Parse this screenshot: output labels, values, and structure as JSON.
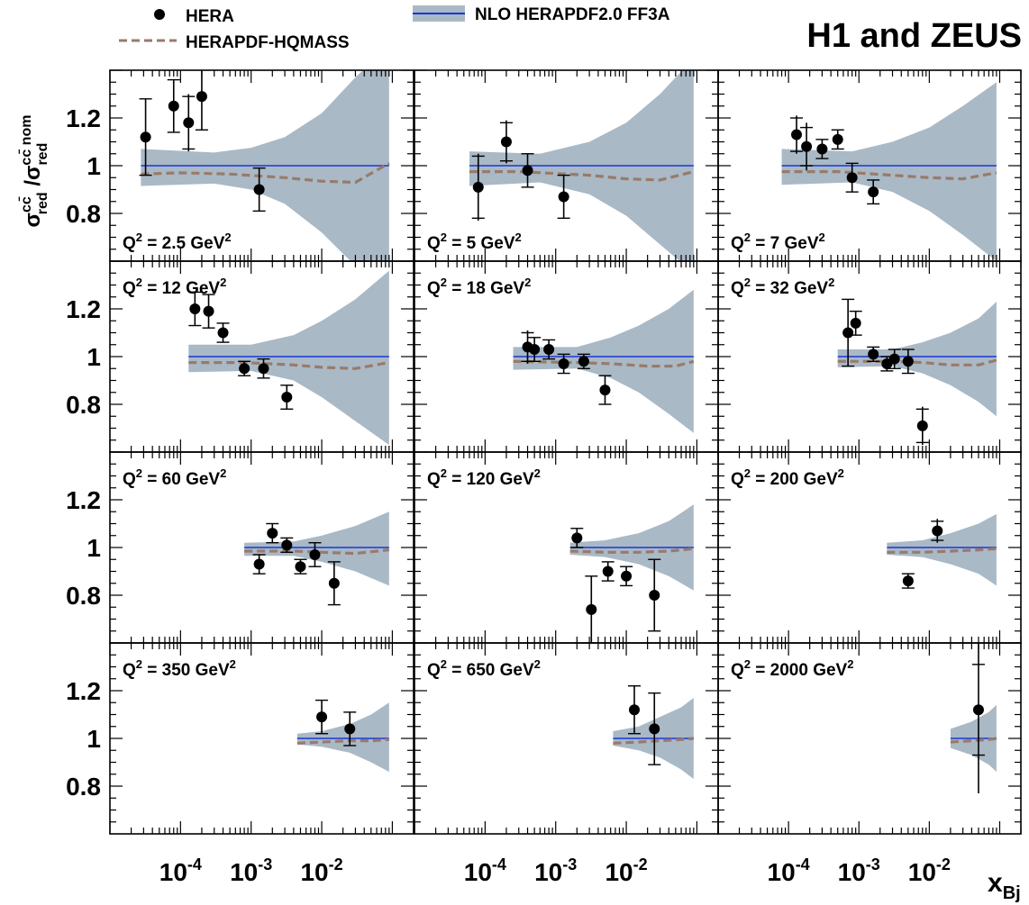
{
  "title": "H1 and ZEUS",
  "legend": {
    "data_label": "HERA",
    "band_label": "NLO HERAPDF2.0 FF3A",
    "dashed_label": "HERAPDF-HQMASS"
  },
  "y_axis_label": "σ_red^cc̄ /σ_red^cc̄ nom",
  "x_axis_label": "x_Bj",
  "chart_data": {
    "type": "scatter",
    "grid_rows": 4,
    "grid_cols": 3,
    "x_scale": "log",
    "xlim": [
      1e-05,
      0.2
    ],
    "ylim": [
      0.6,
      1.4
    ],
    "yticks": [
      0.8,
      1,
      1.2
    ],
    "ytick_labels": [
      "0.8",
      "1",
      "1.2"
    ],
    "xtick_labels": [
      "10^-4",
      "10^-3",
      "10^-2"
    ],
    "xticks": [
      0.0001,
      0.001,
      0.01
    ],
    "band_color": "#a9b9c6",
    "line_color": "#1a36d6",
    "dashed_color": "#9a7a6a",
    "panels": [
      {
        "label_main": "Q",
        "label_exp": "2",
        "label_rest": " = 2.5 GeV",
        "label_unit_exp": "2",
        "label_pos": "bottom",
        "band": {
          "x": [
            2.75e-05,
            0.0003,
            0.001,
            0.003,
            0.01,
            0.03,
            0.09
          ],
          "lo": [
            0.915,
            0.925,
            0.9,
            0.84,
            0.72,
            0.58,
            0.5
          ],
          "hi": [
            1.07,
            1.055,
            1.075,
            1.12,
            1.22,
            1.37,
            1.5
          ]
        },
        "dashed": {
          "x": [
            2.75e-05,
            0.0001,
            0.0005,
            0.003,
            0.01,
            0.03,
            0.09
          ],
          "y": [
            0.965,
            0.97,
            0.965,
            0.95,
            0.935,
            0.93,
            1.01
          ]
        },
        "points": [
          {
            "x": 3.2e-05,
            "y": 1.12,
            "stat": 0.16,
            "tot": 0.16
          },
          {
            "x": 8e-05,
            "y": 1.25,
            "stat": 0.11,
            "tot": 0.11
          },
          {
            "x": 0.00013,
            "y": 1.18,
            "stat": 0.11,
            "tot": 0.12
          },
          {
            "x": 0.0002,
            "y": 1.29,
            "stat": 0.14,
            "tot": 0.14
          },
          {
            "x": 0.0013,
            "y": 0.9,
            "stat": 0.09,
            "tot": 0.09
          }
        ]
      },
      {
        "label_main": "Q",
        "label_exp": "2",
        "label_rest": " = 5 GeV",
        "label_unit_exp": "2",
        "label_pos": "bottom",
        "band": {
          "x": [
            6e-05,
            0.0006,
            0.003,
            0.01,
            0.03,
            0.09
          ],
          "lo": [
            0.915,
            0.93,
            0.88,
            0.79,
            0.67,
            0.55
          ],
          "hi": [
            1.06,
            1.05,
            1.1,
            1.18,
            1.3,
            1.45
          ]
        },
        "dashed": {
          "x": [
            6e-05,
            0.0003,
            0.003,
            0.01,
            0.03,
            0.09
          ],
          "y": [
            0.975,
            0.975,
            0.96,
            0.945,
            0.94,
            0.975
          ]
        },
        "points": [
          {
            "x": 8e-05,
            "y": 0.91,
            "stat": 0.13,
            "tot": 0.14
          },
          {
            "x": 0.0002,
            "y": 1.1,
            "stat": 0.08,
            "tot": 0.09
          },
          {
            "x": 0.0004,
            "y": 0.98,
            "stat": 0.07,
            "tot": 0.07
          },
          {
            "x": 0.0013,
            "y": 0.87,
            "stat": 0.09,
            "tot": 0.09
          }
        ]
      },
      {
        "label_main": "Q",
        "label_exp": "2",
        "label_rest": " = 7 GeV",
        "label_unit_exp": "2",
        "label_pos": "bottom",
        "band": {
          "x": [
            8e-05,
            0.0008,
            0.003,
            0.01,
            0.03,
            0.09
          ],
          "lo": [
            0.92,
            0.93,
            0.89,
            0.81,
            0.71,
            0.6
          ],
          "hi": [
            1.07,
            1.06,
            1.1,
            1.16,
            1.25,
            1.35
          ]
        },
        "dashed": {
          "x": [
            8e-05,
            0.0005,
            0.003,
            0.01,
            0.03,
            0.09
          ],
          "y": [
            0.975,
            0.975,
            0.96,
            0.95,
            0.945,
            0.97
          ]
        },
        "points": [
          {
            "x": 0.00013,
            "y": 1.13,
            "stat": 0.07,
            "tot": 0.08
          },
          {
            "x": 0.00018,
            "y": 1.08,
            "stat": 0.08,
            "tot": 0.1
          },
          {
            "x": 0.0003,
            "y": 1.07,
            "stat": 0.04,
            "tot": 0.04
          },
          {
            "x": 0.0005,
            "y": 1.11,
            "stat": 0.04,
            "tot": 0.04
          },
          {
            "x": 0.0008,
            "y": 0.95,
            "stat": 0.06,
            "tot": 0.06
          },
          {
            "x": 0.0016,
            "y": 0.89,
            "stat": 0.05,
            "tot": 0.05
          }
        ]
      },
      {
        "label_main": "Q",
        "label_exp": "2",
        "label_rest": " = 12 GeV",
        "label_unit_exp": "2",
        "label_pos": "top",
        "band": {
          "x": [
            0.00013,
            0.001,
            0.004,
            0.01,
            0.03,
            0.09
          ],
          "lo": [
            0.935,
            0.94,
            0.9,
            0.83,
            0.73,
            0.63
          ],
          "hi": [
            1.05,
            1.05,
            1.09,
            1.15,
            1.24,
            1.36
          ]
        },
        "dashed": {
          "x": [
            0.00013,
            0.0008,
            0.004,
            0.01,
            0.03,
            0.09
          ],
          "y": [
            0.975,
            0.975,
            0.965,
            0.955,
            0.95,
            0.975
          ]
        },
        "points": [
          {
            "x": 0.00016,
            "y": 1.2,
            "stat": 0.07,
            "tot": 0.07
          },
          {
            "x": 0.00025,
            "y": 1.19,
            "stat": 0.07,
            "tot": 0.07
          },
          {
            "x": 0.0004,
            "y": 1.1,
            "stat": 0.04,
            "tot": 0.04
          },
          {
            "x": 0.0008,
            "y": 0.95,
            "stat": 0.03,
            "tot": 0.03
          },
          {
            "x": 0.0015,
            "y": 0.95,
            "stat": 0.04,
            "tot": 0.04
          },
          {
            "x": 0.0032,
            "y": 0.83,
            "stat": 0.05,
            "tot": 0.05
          }
        ]
      },
      {
        "label_main": "Q",
        "label_exp": "2",
        "label_rest": " = 18 GeV",
        "label_unit_exp": "2",
        "label_pos": "top",
        "band": {
          "x": [
            0.00025,
            0.002,
            0.006,
            0.015,
            0.04,
            0.09
          ],
          "lo": [
            0.945,
            0.95,
            0.91,
            0.85,
            0.76,
            0.68
          ],
          "hi": [
            1.04,
            1.04,
            1.08,
            1.13,
            1.2,
            1.28
          ]
        },
        "dashed": {
          "x": [
            0.00025,
            0.002,
            0.006,
            0.02,
            0.05,
            0.09
          ],
          "y": [
            0.98,
            0.975,
            0.97,
            0.96,
            0.96,
            0.98
          ]
        },
        "points": [
          {
            "x": 0.0004,
            "y": 1.04,
            "stat": 0.06,
            "tot": 0.07
          },
          {
            "x": 0.0005,
            "y": 1.03,
            "stat": 0.05,
            "tot": 0.05
          },
          {
            "x": 0.0008,
            "y": 1.03,
            "stat": 0.04,
            "tot": 0.04
          },
          {
            "x": 0.0013,
            "y": 0.97,
            "stat": 0.04,
            "tot": 0.04
          },
          {
            "x": 0.0025,
            "y": 0.98,
            "stat": 0.03,
            "tot": 0.03
          },
          {
            "x": 0.005,
            "y": 0.86,
            "stat": 0.06,
            "tot": 0.06
          }
        ]
      },
      {
        "label_main": "Q",
        "label_exp": "2",
        "label_rest": " = 32 GeV",
        "label_unit_exp": "2",
        "label_pos": "top",
        "band": {
          "x": [
            0.0005,
            0.003,
            0.008,
            0.02,
            0.05,
            0.09
          ],
          "lo": [
            0.955,
            0.96,
            0.93,
            0.88,
            0.81,
            0.75
          ],
          "hi": [
            1.03,
            1.03,
            1.06,
            1.1,
            1.16,
            1.23
          ]
        },
        "dashed": {
          "x": [
            0.0005,
            0.003,
            0.008,
            0.02,
            0.05,
            0.09
          ],
          "y": [
            0.98,
            0.98,
            0.975,
            0.965,
            0.965,
            0.985
          ]
        },
        "points": [
          {
            "x": 0.0007,
            "y": 1.1,
            "stat": 0.14,
            "tot": 0.14
          },
          {
            "x": 0.0009,
            "y": 1.14,
            "stat": 0.05,
            "tot": 0.05
          },
          {
            "x": 0.0016,
            "y": 1.01,
            "stat": 0.03,
            "tot": 0.03
          },
          {
            "x": 0.0025,
            "y": 0.97,
            "stat": 0.03,
            "tot": 0.03
          },
          {
            "x": 0.0032,
            "y": 0.99,
            "stat": 0.04,
            "tot": 0.04
          },
          {
            "x": 0.005,
            "y": 0.98,
            "stat": 0.05,
            "tot": 0.05
          },
          {
            "x": 0.008,
            "y": 0.71,
            "stat": 0.07,
            "tot": 0.08
          }
        ]
      },
      {
        "label_main": "Q",
        "label_exp": "2",
        "label_rest": " = 60 GeV",
        "label_unit_exp": "2",
        "label_pos": "top",
        "band": {
          "x": [
            0.0008,
            0.004,
            0.01,
            0.03,
            0.09
          ],
          "lo": [
            0.965,
            0.965,
            0.94,
            0.9,
            0.84
          ],
          "hi": [
            1.02,
            1.025,
            1.05,
            1.09,
            1.15
          ]
        },
        "dashed": {
          "x": [
            0.0008,
            0.004,
            0.01,
            0.03,
            0.09
          ],
          "y": [
            0.985,
            0.985,
            0.98,
            0.975,
            0.99
          ]
        },
        "points": [
          {
            "x": 0.0013,
            "y": 0.93,
            "stat": 0.04,
            "tot": 0.04
          },
          {
            "x": 0.002,
            "y": 1.06,
            "stat": 0.04,
            "tot": 0.04
          },
          {
            "x": 0.0032,
            "y": 1.01,
            "stat": 0.03,
            "tot": 0.03
          },
          {
            "x": 0.005,
            "y": 0.92,
            "stat": 0.03,
            "tot": 0.03
          },
          {
            "x": 0.008,
            "y": 0.97,
            "stat": 0.05,
            "tot": 0.05
          },
          {
            "x": 0.015,
            "y": 0.85,
            "stat": 0.09,
            "tot": 0.09
          }
        ]
      },
      {
        "label_main": "Q",
        "label_exp": "2",
        "label_rest": " = 120 GeV",
        "label_unit_exp": "2",
        "label_pos": "top",
        "band": {
          "x": [
            0.0016,
            0.005,
            0.015,
            0.04,
            0.09
          ],
          "lo": [
            0.97,
            0.96,
            0.93,
            0.88,
            0.82
          ],
          "hi": [
            1.02,
            1.03,
            1.06,
            1.11,
            1.18
          ]
        },
        "dashed": {
          "x": [
            0.0016,
            0.005,
            0.015,
            0.04,
            0.09
          ],
          "y": [
            0.985,
            0.98,
            0.98,
            0.985,
            0.995
          ]
        },
        "points": [
          {
            "x": 0.002,
            "y": 1.04,
            "stat": 0.04,
            "tot": 0.04
          },
          {
            "x": 0.0032,
            "y": 0.74,
            "stat": 0.14,
            "tot": 0.14
          },
          {
            "x": 0.0055,
            "y": 0.9,
            "stat": 0.04,
            "tot": 0.04
          },
          {
            "x": 0.01,
            "y": 0.88,
            "stat": 0.04,
            "tot": 0.04
          },
          {
            "x": 0.025,
            "y": 0.8,
            "stat": 0.15,
            "tot": 0.15
          }
        ]
      },
      {
        "label_main": "Q",
        "label_exp": "2",
        "label_rest": " = 200 GeV",
        "label_unit_exp": "2",
        "label_pos": "top",
        "band": {
          "x": [
            0.0025,
            0.008,
            0.02,
            0.05,
            0.09
          ],
          "lo": [
            0.97,
            0.96,
            0.93,
            0.89,
            0.84
          ],
          "hi": [
            1.02,
            1.03,
            1.06,
            1.1,
            1.14
          ]
        },
        "dashed": {
          "x": [
            0.0025,
            0.008,
            0.02,
            0.05,
            0.09
          ],
          "y": [
            0.98,
            0.98,
            0.985,
            0.99,
            0.995
          ]
        },
        "points": [
          {
            "x": 0.005,
            "y": 0.86,
            "stat": 0.03,
            "tot": 0.03
          },
          {
            "x": 0.013,
            "y": 1.07,
            "stat": 0.04,
            "tot": 0.05
          }
        ]
      },
      {
        "label_main": "Q",
        "label_exp": "2",
        "label_rest": " = 350 GeV",
        "label_unit_exp": "2",
        "label_pos": "top",
        "band": {
          "x": [
            0.0045,
            0.01,
            0.025,
            0.05,
            0.09
          ],
          "lo": [
            0.975,
            0.965,
            0.94,
            0.9,
            0.86
          ],
          "hi": [
            1.02,
            1.03,
            1.06,
            1.1,
            1.15
          ]
        },
        "dashed": {
          "x": [
            0.0045,
            0.01,
            0.025,
            0.05,
            0.09
          ],
          "y": [
            0.98,
            0.985,
            0.99,
            0.99,
            0.995
          ]
        },
        "points": [
          {
            "x": 0.01,
            "y": 1.09,
            "stat": 0.07,
            "tot": 0.07
          },
          {
            "x": 0.025,
            "y": 1.04,
            "stat": 0.07,
            "tot": 0.07
          }
        ]
      },
      {
        "label_main": "Q",
        "label_exp": "2",
        "label_rest": " = 650 GeV",
        "label_unit_exp": "2",
        "label_pos": "top",
        "band": {
          "x": [
            0.0065,
            0.015,
            0.03,
            0.06,
            0.09
          ],
          "lo": [
            0.97,
            0.95,
            0.92,
            0.87,
            0.83
          ],
          "hi": [
            1.03,
            1.05,
            1.09,
            1.13,
            1.17
          ]
        },
        "dashed": {
          "x": [
            0.0065,
            0.015,
            0.03,
            0.06,
            0.09
          ],
          "y": [
            0.98,
            0.985,
            0.99,
            0.995,
            1.0
          ]
        },
        "points": [
          {
            "x": 0.013,
            "y": 1.12,
            "stat": 0.1,
            "tot": 0.1
          },
          {
            "x": 0.025,
            "y": 1.04,
            "stat": 0.15,
            "tot": 0.15
          }
        ]
      },
      {
        "label_main": "Q",
        "label_exp": "2",
        "label_rest": " = 2000 GeV",
        "label_unit_exp": "2",
        "label_pos": "top",
        "band": {
          "x": [
            0.02,
            0.04,
            0.07,
            0.09
          ],
          "lo": [
            0.96,
            0.93,
            0.89,
            0.86
          ],
          "hi": [
            1.04,
            1.07,
            1.11,
            1.14
          ]
        },
        "dashed": {
          "x": [
            0.02,
            0.04,
            0.07,
            0.09
          ],
          "y": [
            0.985,
            0.99,
            0.995,
            1.0
          ]
        },
        "points": [
          {
            "x": 0.05,
            "y": 1.12,
            "stat": 0.19,
            "tot": 0.35
          }
        ]
      }
    ]
  }
}
